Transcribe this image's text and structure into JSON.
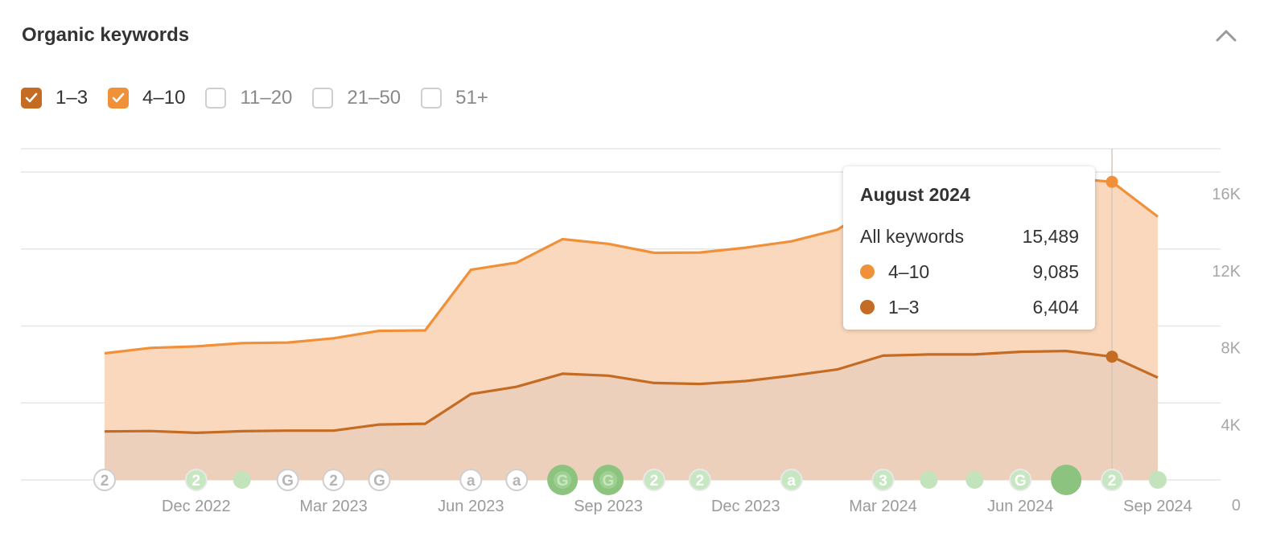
{
  "header": {
    "title": "Organic keywords"
  },
  "icons": {
    "collapse": "chevron-up-icon",
    "check": "checkmark-icon"
  },
  "filters": [
    {
      "label": "1–3",
      "checked": true,
      "color": "#c46b24"
    },
    {
      "label": "4–10",
      "checked": true,
      "color": "#f0913a"
    },
    {
      "label": "11–20",
      "checked": false,
      "color": ""
    },
    {
      "label": "21–50",
      "checked": false,
      "color": ""
    },
    {
      "label": "51+",
      "checked": false,
      "color": ""
    }
  ],
  "tooltip": {
    "title": "August 2024",
    "rows": [
      {
        "label": "All keywords",
        "value": "15,489",
        "color": ""
      },
      {
        "label": "4–10",
        "value": "9,085",
        "color": "#f0913a"
      },
      {
        "label": "1–3",
        "value": "6,404",
        "color": "#c46b24"
      }
    ]
  },
  "chart_data": {
    "type": "area",
    "stacked": true,
    "x": [
      "2022-10",
      "2022-11",
      "2022-12",
      "2023-01",
      "2023-02",
      "2023-03",
      "2023-04",
      "2023-05",
      "2023-06",
      "2023-07",
      "2023-08",
      "2023-09",
      "2023-10",
      "2023-11",
      "2023-12",
      "2024-01",
      "2024-02",
      "2024-03",
      "2024-04",
      "2024-05",
      "2024-06",
      "2024-07",
      "2024-08",
      "2024-09"
    ],
    "x_tick_labels": [
      "Dec 2022",
      "Mar 2023",
      "Jun 2023",
      "Sep 2023",
      "Dec 2023",
      "Mar 2024",
      "Jun 2024",
      "Sep 2024"
    ],
    "x_tick_positions": [
      "2022-12",
      "2023-03",
      "2023-06",
      "2023-09",
      "2023-12",
      "2024-03",
      "2024-06",
      "2024-09"
    ],
    "y_tick_labels": [
      "0",
      "4K",
      "8K",
      "12K",
      "16K"
    ],
    "y_ticks": [
      0,
      4000,
      8000,
      12000,
      16000
    ],
    "ylim": [
      0,
      16000
    ],
    "series": [
      {
        "name": "1–3",
        "color": "#c46b24",
        "values": [
          2520,
          2540,
          2450,
          2530,
          2560,
          2560,
          2880,
          2920,
          4460,
          4840,
          5520,
          5420,
          5040,
          4990,
          5140,
          5420,
          5740,
          6460,
          6520,
          6520,
          6660,
          6700,
          6404,
          5320
        ]
      },
      {
        "name": "4–10",
        "color": "#f0913a",
        "values": [
          4060,
          4320,
          4490,
          4580,
          4580,
          4800,
          4870,
          4850,
          6460,
          6450,
          6990,
          6850,
          6760,
          6830,
          6930,
          6980,
          7260,
          7990,
          8440,
          8860,
          8960,
          8990,
          9085,
          8360
        ]
      }
    ],
    "hover_index": 22,
    "grid": true,
    "axis_position": "right",
    "annotations": [
      {
        "x": "2022-10",
        "label": "2",
        "style": "outline"
      },
      {
        "x": "2022-12",
        "label": "2",
        "style": "green-outline"
      },
      {
        "x": "2023-01",
        "label": "",
        "style": "green"
      },
      {
        "x": "2023-02",
        "label": "G",
        "style": "outline"
      },
      {
        "x": "2023-03",
        "label": "2",
        "style": "outline"
      },
      {
        "x": "2023-04",
        "label": "G",
        "style": "outline"
      },
      {
        "x": "2023-06",
        "label": "a",
        "style": "outline"
      },
      {
        "x": "2023-07",
        "label": "a",
        "style": "outline"
      },
      {
        "x": "2023-08",
        "label": "G",
        "style": "green-strong"
      },
      {
        "x": "2023-09",
        "label": "G",
        "style": "green-strong"
      },
      {
        "x": "2023-10",
        "label": "2",
        "style": "green-outline"
      },
      {
        "x": "2023-11",
        "label": "2",
        "style": "green-outline"
      },
      {
        "x": "2024-01",
        "label": "a",
        "style": "green-outline"
      },
      {
        "x": "2024-03",
        "label": "3",
        "style": "green-outline"
      },
      {
        "x": "2024-04",
        "label": "",
        "style": "green"
      },
      {
        "x": "2024-05",
        "label": "",
        "style": "green"
      },
      {
        "x": "2024-06",
        "label": "G",
        "style": "green-outline"
      },
      {
        "x": "2024-07",
        "label": "",
        "style": "green-big"
      },
      {
        "x": "2024-08",
        "label": "2",
        "style": "green-outline"
      },
      {
        "x": "2024-09",
        "label": "",
        "style": "green"
      }
    ]
  }
}
